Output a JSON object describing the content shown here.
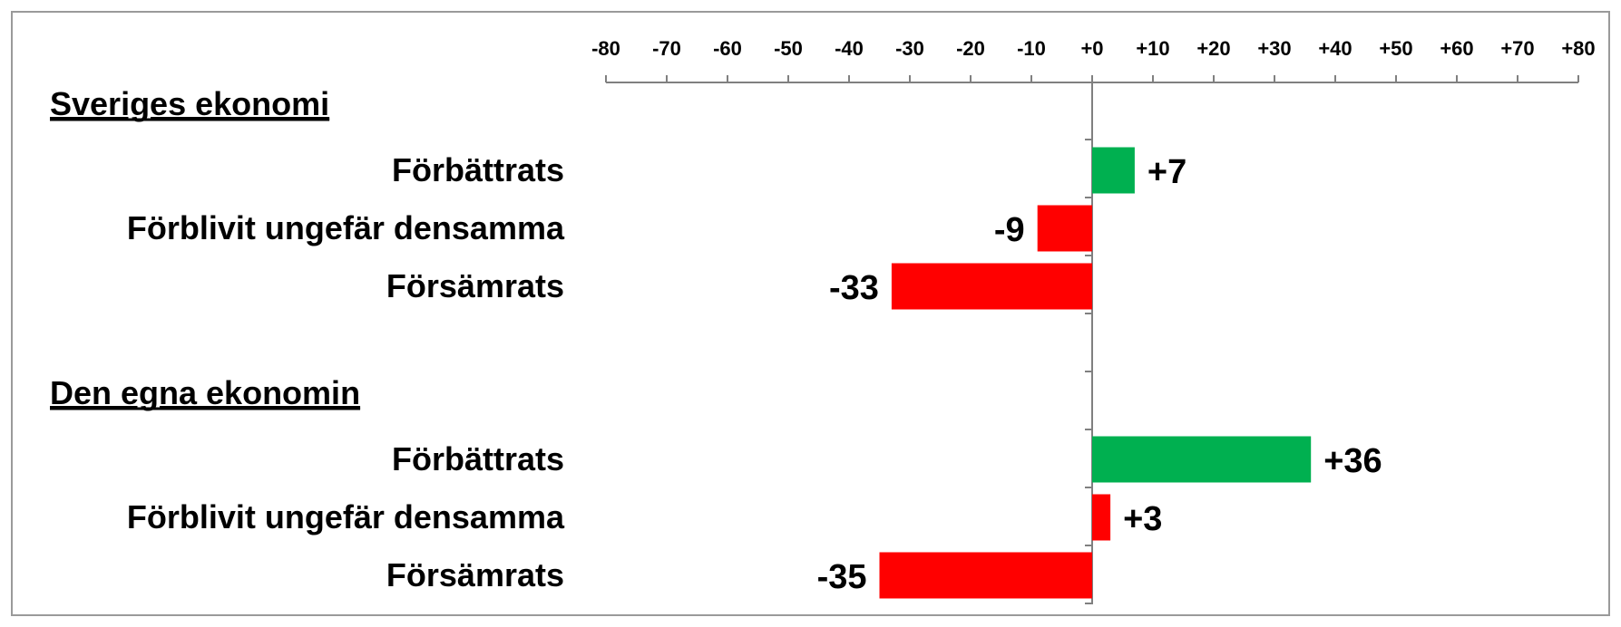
{
  "chart_data": {
    "type": "bar",
    "orientation": "horizontal",
    "xlim": [
      -80,
      80
    ],
    "ticks": [
      "-80",
      "-70",
      "-60",
      "-50",
      "-40",
      "-30",
      "-20",
      "-10",
      "+0",
      "+10",
      "+20",
      "+30",
      "+40",
      "+50",
      "+60",
      "+70",
      "+80"
    ],
    "groups": [
      {
        "title": "Sveriges ekonomi",
        "items": [
          {
            "label": "Förbättrats",
            "value": 7,
            "display": "+7",
            "color": "#00b050"
          },
          {
            "label": "Förblivit ungefär densamma",
            "value": -9,
            "display": "-9",
            "color": "#ff0000"
          },
          {
            "label": "Försämrats",
            "value": -33,
            "display": "-33",
            "color": "#ff0000"
          }
        ]
      },
      {
        "title": "Den egna ekonomin",
        "items": [
          {
            "label": "Förbättrats",
            "value": 36,
            "display": "+36",
            "color": "#00b050"
          },
          {
            "label": "Förblivit ungefär densamma",
            "value": 3,
            "display": "+3",
            "color": "#ff0000"
          },
          {
            "label": "Försämrats",
            "value": -35,
            "display": "-35",
            "color": "#ff0000"
          }
        ]
      }
    ],
    "grid": false,
    "legend": "none"
  }
}
